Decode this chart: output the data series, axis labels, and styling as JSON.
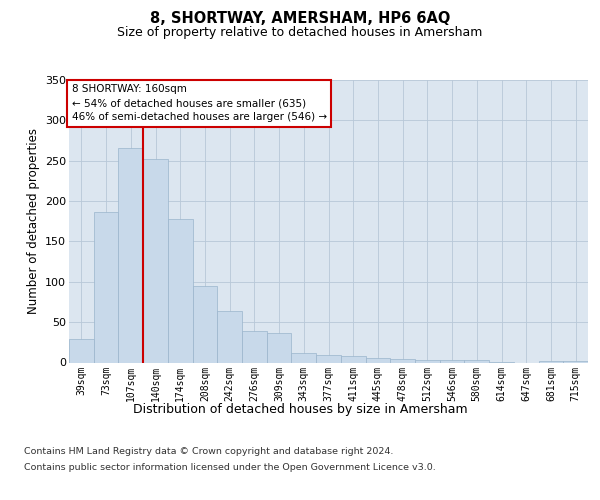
{
  "title": "8, SHORTWAY, AMERSHAM, HP6 6AQ",
  "subtitle": "Size of property relative to detached houses in Amersham",
  "xlabel": "Distribution of detached houses by size in Amersham",
  "ylabel": "Number of detached properties",
  "categories": [
    "39sqm",
    "73sqm",
    "107sqm",
    "140sqm",
    "174sqm",
    "208sqm",
    "242sqm",
    "276sqm",
    "309sqm",
    "343sqm",
    "377sqm",
    "411sqm",
    "445sqm",
    "478sqm",
    "512sqm",
    "546sqm",
    "580sqm",
    "614sqm",
    "647sqm",
    "681sqm",
    "715sqm"
  ],
  "values": [
    29,
    186,
    266,
    252,
    178,
    95,
    64,
    39,
    37,
    12,
    9,
    8,
    6,
    4,
    3,
    3,
    3,
    1,
    0,
    2,
    2
  ],
  "bar_color": "#c8d9ea",
  "bar_edge_color": "#9ab4cc",
  "grid_color": "#b8c8d8",
  "background_color": "#dce6f0",
  "vline_x": 2.5,
  "vline_color": "#cc0000",
  "annotation_line1": "8 SHORTWAY: 160sqm",
  "annotation_line2": "← 54% of detached houses are smaller (635)",
  "annotation_line3": "46% of semi-detached houses are larger (546) →",
  "annotation_box_facecolor": "#ffffff",
  "annotation_box_edgecolor": "#cc0000",
  "ylim": [
    0,
    350
  ],
  "yticks": [
    0,
    50,
    100,
    150,
    200,
    250,
    300,
    350
  ],
  "footer_line1": "Contains HM Land Registry data © Crown copyright and database right 2024.",
  "footer_line2": "Contains public sector information licensed under the Open Government Licence v3.0."
}
